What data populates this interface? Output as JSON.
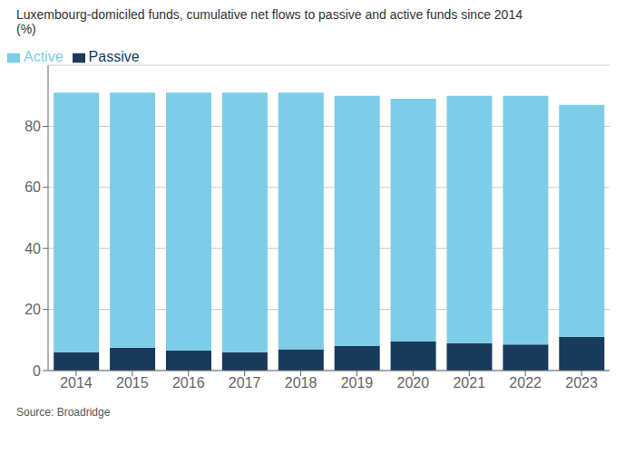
{
  "chart_data": {
    "type": "bar",
    "title": "Luxembourg-domiciled funds, cumulative net flows to passive and active funds since 2014",
    "subtitle": "(%)",
    "annotations": [
      "Source: Broadridge"
    ],
    "categories": [
      "2014",
      "2015",
      "2016",
      "2017",
      "2018",
      "2019",
      "2020",
      "2021",
      "2022",
      "2023"
    ],
    "series": [
      {
        "name": "Passive",
        "color": "#1a3a5c",
        "values": [
          6,
          7.5,
          6.5,
          6,
          7,
          8,
          9.5,
          9,
          8.5,
          11
        ]
      },
      {
        "name": "Active",
        "color": "#7dcde8",
        "values": [
          85,
          83.5,
          84.5,
          85,
          84,
          82,
          79.5,
          81,
          81.5,
          76
        ]
      }
    ],
    "stacked": true,
    "ylim": [
      0,
      100
    ],
    "yticks": [
      0,
      20,
      40,
      60,
      80
    ],
    "grid": true,
    "legend": "top-left"
  }
}
